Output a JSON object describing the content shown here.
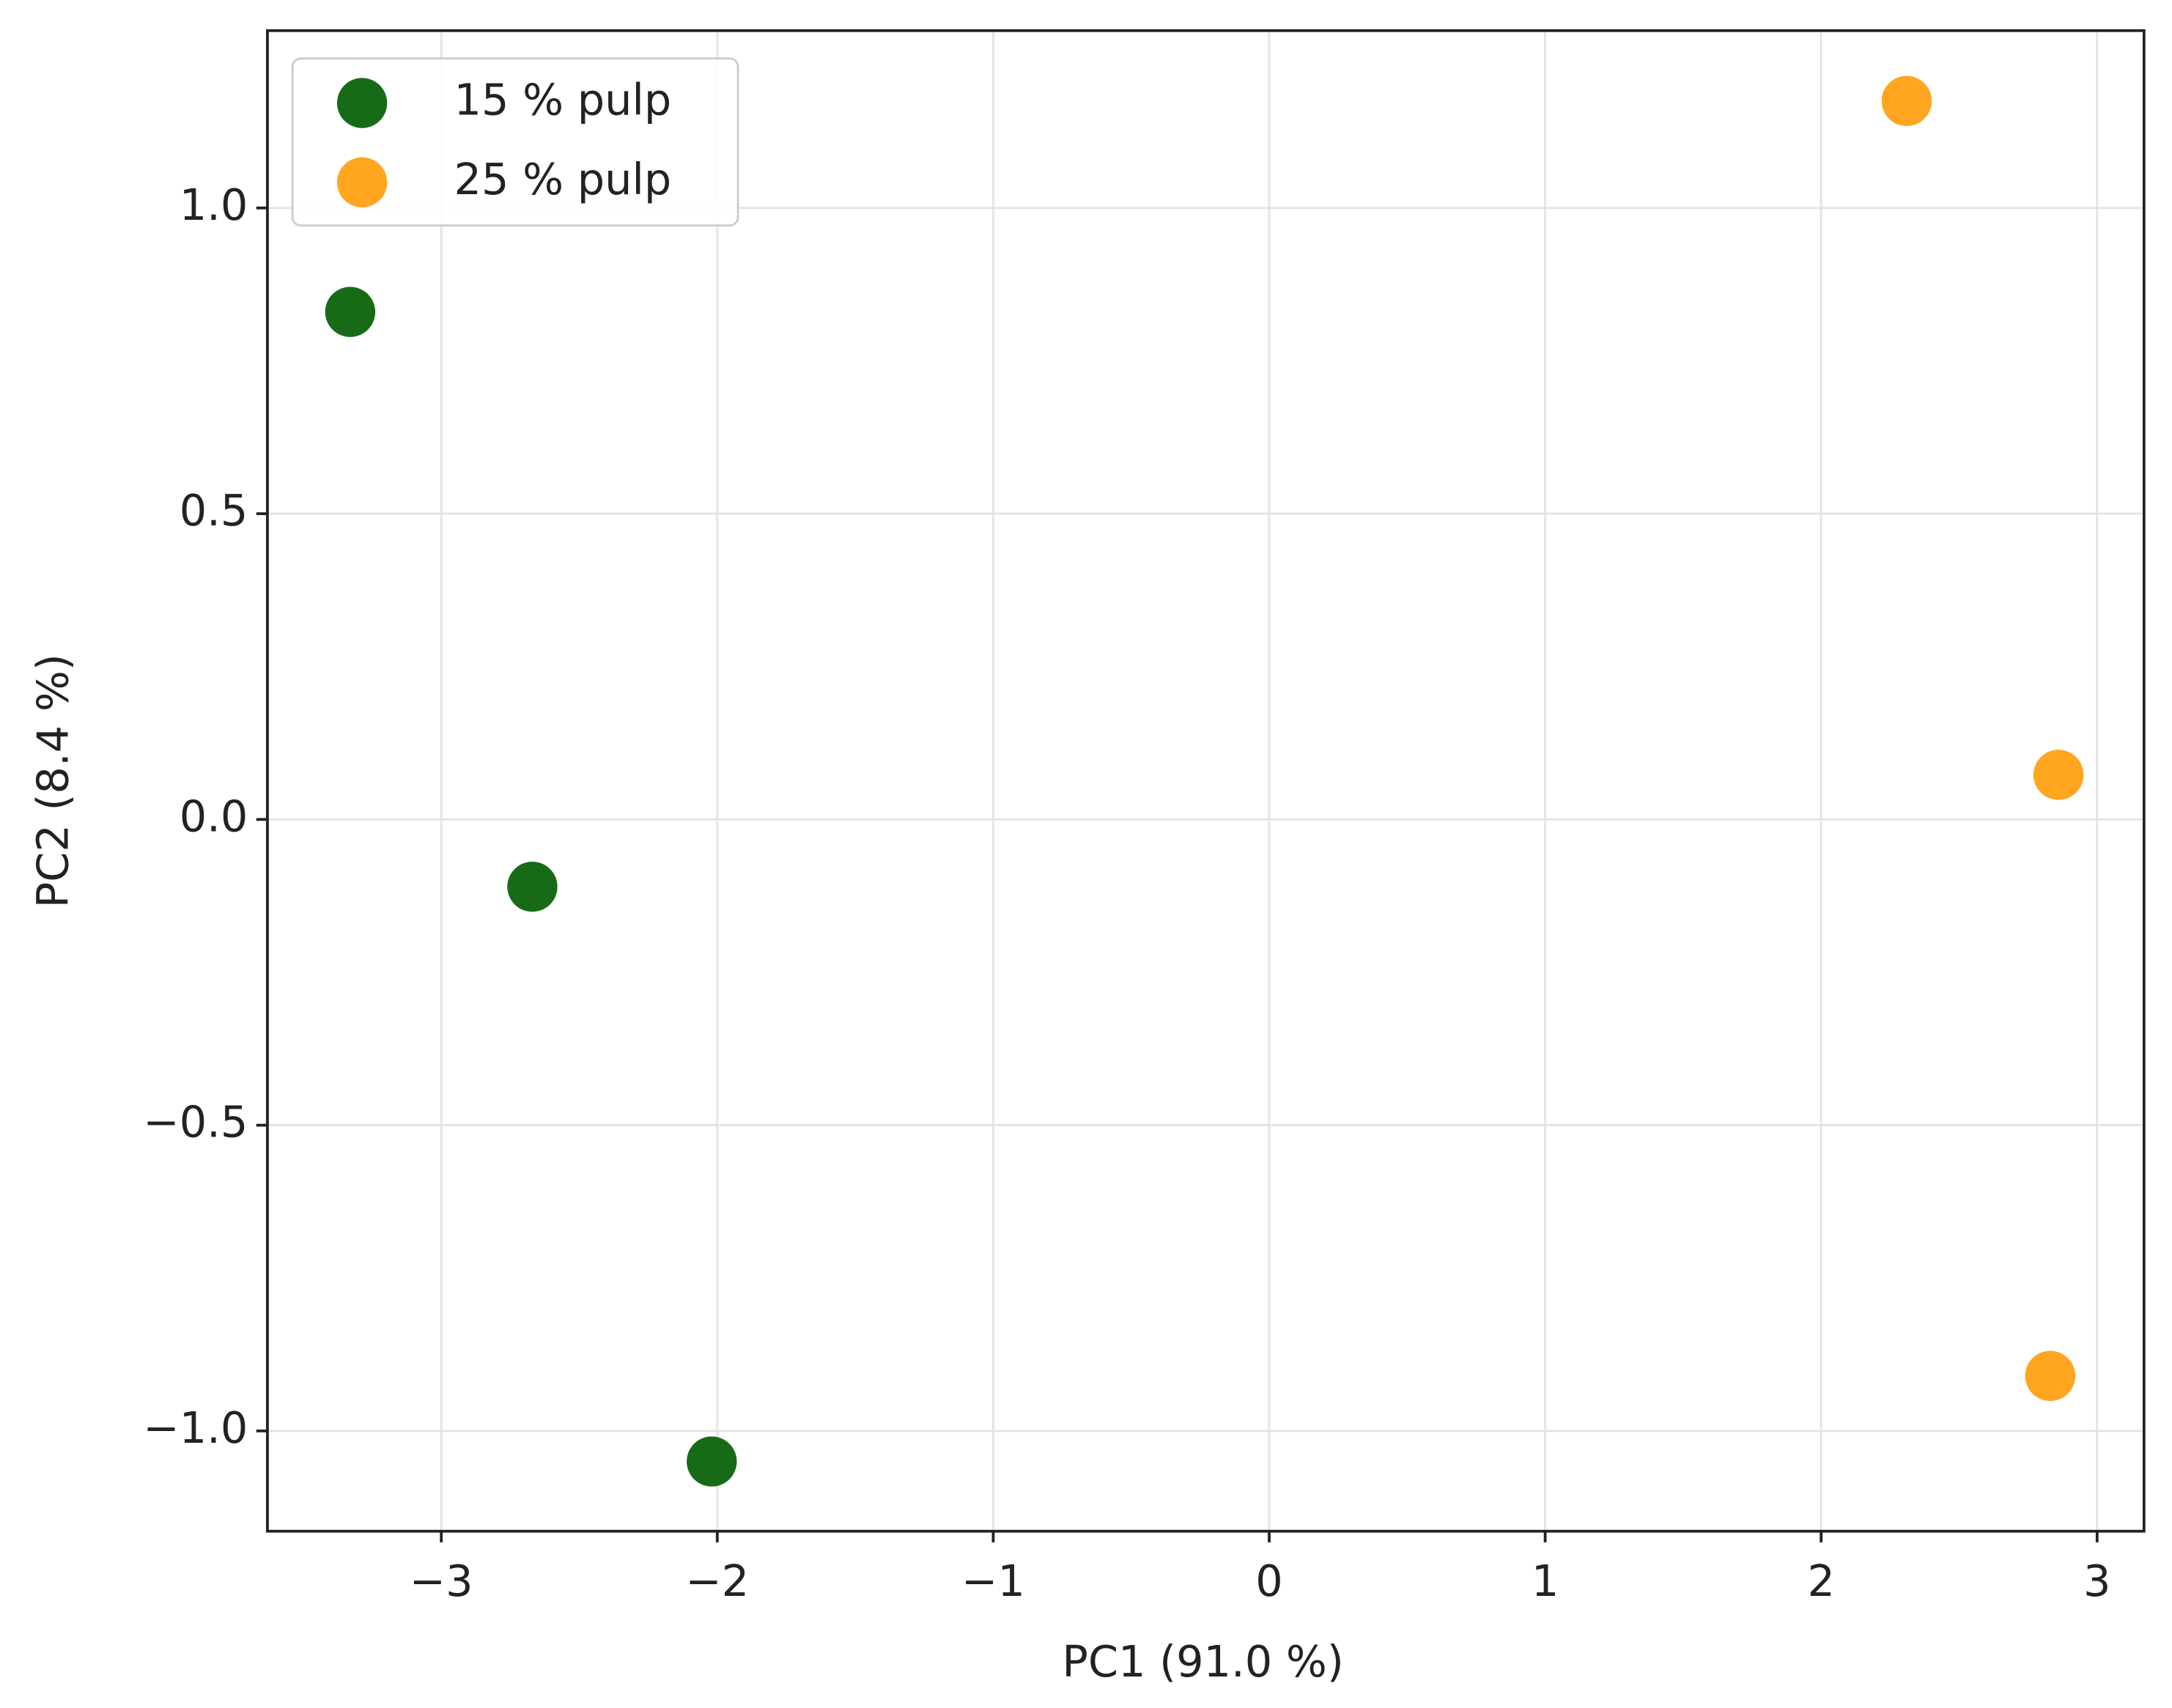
{
  "chart_data": {
    "type": "scatter",
    "x_label": "PC1 (91.0 %)",
    "y_label": "PC2 (8.4 %)",
    "series": [
      {
        "name": "15 % pulp",
        "color": "#176b17",
        "x": [
          -3.33,
          -2.67,
          -2.02
        ],
        "values": [
          0.83,
          -0.11,
          -1.05
        ]
      },
      {
        "name": "25 % pulp",
        "color": "#ffa51f",
        "x": [
          2.31,
          2.86,
          2.83
        ],
        "values": [
          1.175,
          0.073,
          -0.91
        ]
      }
    ],
    "xlim": [
      -3.63,
      3.17
    ],
    "ylim": [
      -1.164,
      1.29
    ],
    "xticks": [
      {
        "value": -3,
        "label": "−3"
      },
      {
        "value": -2,
        "label": "−2"
      },
      {
        "value": -1,
        "label": "−1"
      },
      0,
      1,
      2,
      3
    ],
    "yticks": [
      {
        "value": -1,
        "label": "−1.0"
      },
      {
        "value": -0.5,
        "label": "−0.5"
      },
      {
        "value": 0,
        "label": "0.0"
      },
      0.5,
      {
        "value": 1,
        "label": "1.0"
      }
    ],
    "grid": true,
    "legend": "upper left"
  }
}
